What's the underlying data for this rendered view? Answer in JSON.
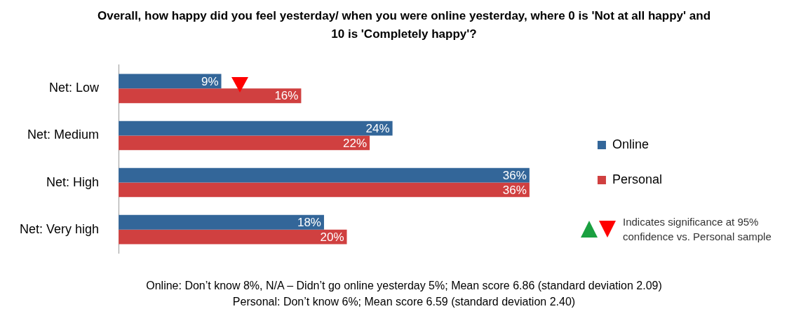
{
  "chart_data": {
    "type": "bar",
    "orientation": "horizontal",
    "title": "Overall, how happy did you feel yesterday/ when you were online yesterday, where 0 is 'Not at all happy' and 10 is 'Completely happy'?",
    "categories": [
      "Net: Low",
      "Net: Medium",
      "Net: High",
      "Net: Very high"
    ],
    "series": [
      {
        "name": "Online",
        "color": "#336699",
        "values": [
          9,
          24,
          36,
          18
        ],
        "value_labels": [
          "9%",
          "24%",
          "36%",
          "18%"
        ]
      },
      {
        "name": "Personal",
        "color": "#d04040",
        "values": [
          16,
          22,
          36,
          20
        ],
        "value_labels": [
          "16%",
          "22%",
          "36%",
          "20%"
        ]
      }
    ],
    "legend": "right",
    "annotations": [
      "Indicates significance at 95% confidence vs. Personal sample",
      "Online: Don’t know 8%, N/A – Didn’t go online yesterday 5%; Mean score 6.86 (standard deviation 2.09)",
      "Personal: Don’t know 6%; Mean score 6.59 (standard deviation 2.40)"
    ]
  }
}
